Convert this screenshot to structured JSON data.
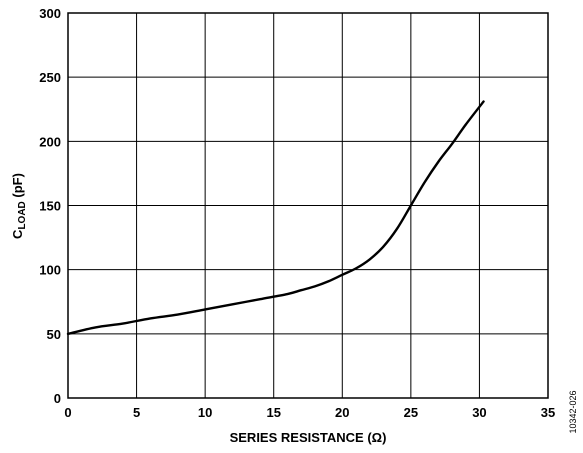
{
  "chart_data": {
    "type": "line",
    "title": "",
    "xlabel": "SERIES RESISTANCE (Ω)",
    "ylabel": {
      "main": "C",
      "subscript": "LOAD",
      "unit": " (pF)"
    },
    "xlim": [
      0,
      35
    ],
    "ylim": [
      0,
      300
    ],
    "xticks": [
      "0",
      "5",
      "10",
      "15",
      "20",
      "25",
      "30",
      "35"
    ],
    "yticks": [
      "0",
      "50",
      "100",
      "150",
      "200",
      "250",
      "300"
    ],
    "grid": true,
    "legend": "none",
    "series": [
      {
        "color": "#000000",
        "x": [
          0,
          2,
          4,
          6,
          8,
          10,
          12,
          14,
          16,
          17,
          18,
          19,
          20,
          21,
          22,
          23,
          24,
          25,
          26,
          27,
          28,
          29,
          30.3
        ],
        "y": [
          50,
          55,
          58,
          62,
          65,
          69,
          73,
          77,
          81,
          84,
          87,
          91,
          96,
          101,
          108,
          118,
          132,
          150,
          168,
          184,
          198,
          213,
          231
        ]
      }
    ]
  },
  "figure_id": "10342-026"
}
